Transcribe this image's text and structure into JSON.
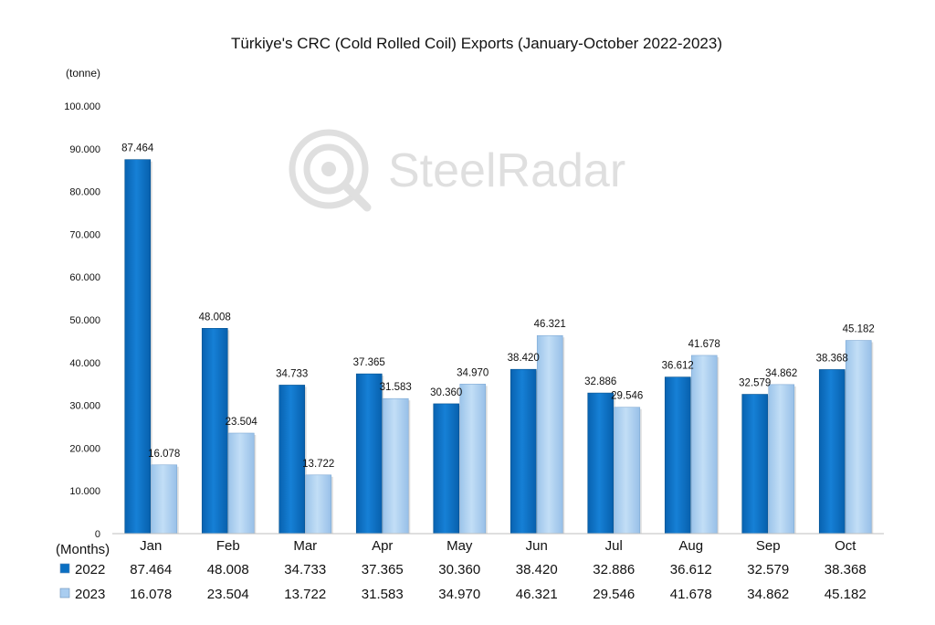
{
  "chart_data": {
    "type": "bar",
    "title": "Türkiye's CRC (Cold Rolled Coil) Exports (January-October 2022-2023)",
    "ylabel": "(tonne)",
    "xlabel": "(Months)",
    "ylim": [
      0,
      100000
    ],
    "ytick_values": [
      0,
      10000,
      20000,
      30000,
      40000,
      50000,
      60000,
      70000,
      80000,
      90000,
      100000
    ],
    "ytick_labels": [
      "0",
      "10.000",
      "20.000",
      "30.000",
      "40.000",
      "50.000",
      "60.000",
      "70.000",
      "80.000",
      "90.000",
      "100.000"
    ],
    "categories": [
      "Jan",
      "Feb",
      "Mar",
      "Apr",
      "May",
      "Jun",
      "Jul",
      "Aug",
      "Sep",
      "Oct"
    ],
    "series": [
      {
        "name": "2022",
        "color": "#0a6fc2",
        "values": [
          87464,
          48008,
          34733,
          37365,
          30360,
          38420,
          32886,
          36612,
          32579,
          38368
        ],
        "labels": [
          "87.464",
          "48.008",
          "34.733",
          "37.365",
          "30.360",
          "38.420",
          "32.886",
          "36.612",
          "32.579",
          "38.368"
        ]
      },
      {
        "name": "2023",
        "color": "#a9cdf0",
        "values": [
          16078,
          23504,
          13722,
          31583,
          34970,
          46321,
          29546,
          41678,
          34862,
          45182
        ],
        "labels": [
          "16.078",
          "23.504",
          "13.722",
          "31.583",
          "34.970",
          "46.321",
          "29.546",
          "41.678",
          "34.862",
          "45.182"
        ]
      }
    ],
    "grid": false,
    "legend": "data-table-below"
  },
  "watermark": {
    "text": "SteelRadar",
    "icon": "radar-logo-icon"
  }
}
